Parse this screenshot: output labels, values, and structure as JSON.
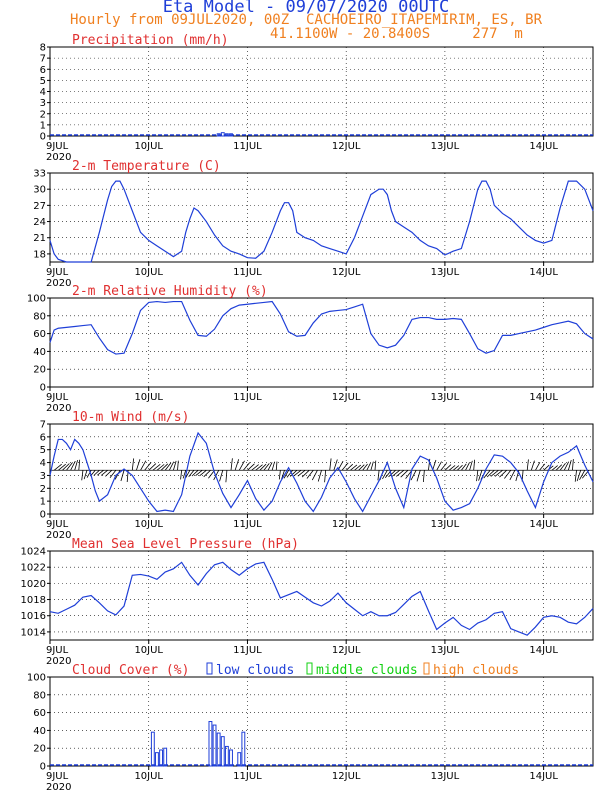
{
  "header": {
    "title": "Eta Model - 09/07/2020 00UTC",
    "subtitle1": "Hourly from 09JUL2020, 00Z  CACHOEIRO_ITAPEMIRIM, ES, BR",
    "subtitle2": "41.1100W - 20.8400S     277  m"
  },
  "colors": {
    "series": "#1f3fd8",
    "title_red": "#e03030",
    "header_orange": "#f08020",
    "legend_green": "#10d010",
    "wind_barb": "#000000"
  },
  "x_axis": {
    "tick_labels": [
      "9JUL",
      "10JUL",
      "11JUL",
      "12JUL",
      "13JUL",
      "14JUL"
    ],
    "tick_hours": [
      0,
      24,
      48,
      72,
      96,
      120
    ],
    "year_label": "2020",
    "range_hours": [
      0,
      132
    ]
  },
  "chart_data": [
    {
      "id": "precip",
      "type": "bar",
      "title": "Precipitation (mm/h)",
      "ylim": [
        0,
        8
      ],
      "yticks": [
        0,
        1,
        2,
        3,
        4,
        5,
        6,
        7,
        8
      ],
      "grid": true,
      "x": [
        41,
        42,
        43,
        44
      ],
      "values": [
        0.2,
        0.3,
        0.2,
        0.2
      ]
    },
    {
      "id": "temp",
      "type": "line",
      "title": "2-m Temperature (C)",
      "ylim": [
        16.5,
        33
      ],
      "yticks": [
        18,
        21,
        24,
        27,
        30,
        33
      ],
      "grid": true,
      "x": [
        0,
        1,
        2,
        4,
        6,
        8,
        10,
        12,
        14,
        15,
        16,
        17,
        18,
        20,
        22,
        24,
        26,
        28,
        30,
        32,
        33,
        34,
        35,
        36,
        38,
        40,
        42,
        44,
        46,
        48,
        50,
        52,
        54,
        56,
        57,
        58,
        59,
        60,
        62,
        64,
        66,
        68,
        70,
        72,
        74,
        76,
        78,
        80,
        81,
        82,
        83,
        84,
        86,
        88,
        90,
        92,
        94,
        96,
        98,
        100,
        102,
        104,
        105,
        106,
        107,
        108,
        110,
        112,
        114,
        116,
        118,
        120,
        122,
        124,
        126,
        128,
        130,
        132
      ],
      "values": [
        20.5,
        18,
        17,
        16.5,
        16,
        16,
        16.2,
        22,
        28,
        30.5,
        31.5,
        31.5,
        30,
        26,
        22,
        20.5,
        19.5,
        18.5,
        17.5,
        18.5,
        22,
        24.5,
        26.5,
        26,
        24,
        21.5,
        19.5,
        18.5,
        18,
        17.3,
        17.2,
        18.5,
        22,
        26,
        27.5,
        27.5,
        26,
        22,
        21,
        20.5,
        19.5,
        19,
        18.5,
        18,
        21,
        25,
        29,
        30,
        30,
        29,
        26,
        24,
        23,
        22,
        20.5,
        19.5,
        19,
        17.8,
        18.5,
        19,
        24,
        30,
        31.5,
        31.5,
        30,
        27,
        25.5,
        24.5,
        23,
        21.5,
        20.5,
        20,
        20.5,
        26.5,
        31.5,
        31.5,
        30,
        26
      ]
    },
    {
      "id": "rh",
      "type": "line",
      "title": "2-m Relative Humidity (%)",
      "ylim": [
        0,
        100
      ],
      "yticks": [
        0,
        20,
        40,
        60,
        80,
        100
      ],
      "grid": true,
      "x": [
        0,
        1,
        2,
        4,
        6,
        8,
        10,
        12,
        14,
        16,
        18,
        20,
        22,
        24,
        26,
        28,
        30,
        32,
        34,
        36,
        38,
        40,
        42,
        44,
        46,
        48,
        50,
        52,
        54,
        56,
        58,
        60,
        62,
        64,
        66,
        68,
        70,
        72,
        74,
        76,
        78,
        80,
        82,
        84,
        86,
        88,
        90,
        92,
        94,
        96,
        98,
        100,
        102,
        104,
        106,
        108,
        110,
        112,
        114,
        116,
        118,
        120,
        122,
        124,
        126,
        128,
        130,
        132
      ],
      "values": [
        50,
        64,
        66,
        67,
        68,
        69,
        70,
        55,
        42,
        37,
        38,
        60,
        86,
        95,
        96,
        95,
        96,
        96,
        75,
        58,
        57,
        65,
        80,
        88,
        92,
        93,
        94,
        95,
        96,
        82,
        62,
        57,
        58,
        72,
        82,
        85,
        86,
        87,
        90,
        93,
        60,
        47,
        44,
        47,
        58,
        76,
        78,
        78,
        76,
        76,
        77,
        76,
        60,
        43,
        38,
        41,
        58,
        58,
        60,
        62,
        64,
        67,
        70,
        72,
        74,
        71,
        60,
        54
      ]
    },
    {
      "id": "wind",
      "type": "line",
      "title": "10-m Wind (m/s)",
      "ylim": [
        0,
        7
      ],
      "yticks": [
        0,
        1,
        2,
        3,
        4,
        5,
        6,
        7
      ],
      "grid": true,
      "barb_level": 3.4,
      "x": [
        0,
        1,
        2,
        3,
        4,
        5,
        6,
        7,
        8,
        9,
        10,
        11,
        12,
        14,
        16,
        18,
        20,
        22,
        24,
        26,
        28,
        30,
        32,
        34,
        36,
        38,
        40,
        42,
        44,
        46,
        48,
        50,
        52,
        54,
        56,
        58,
        60,
        62,
        64,
        66,
        68,
        70,
        72,
        74,
        76,
        78,
        80,
        82,
        84,
        86,
        88,
        90,
        92,
        94,
        96,
        98,
        100,
        102,
        104,
        106,
        108,
        110,
        112,
        114,
        116,
        118,
        120,
        122,
        124,
        126,
        128,
        130,
        132
      ],
      "values": [
        3,
        4.5,
        5.8,
        5.8,
        5.5,
        5,
        5.8,
        5.5,
        5,
        4,
        3,
        1.8,
        1,
        1.5,
        3,
        3.5,
        3,
        2,
        1,
        0.2,
        0.3,
        0.2,
        1.5,
        4.5,
        6.3,
        5.5,
        3.2,
        1.6,
        0.5,
        1.5,
        2.6,
        1.2,
        0.3,
        1,
        2.5,
        3.6,
        2.4,
        1,
        0.2,
        1.3,
        2.8,
        3.6,
        2.5,
        1.2,
        0.2,
        1.4,
        2.6,
        4,
        2,
        0.5,
        3.5,
        4.5,
        4.2,
        2.8,
        1,
        0.3,
        0.5,
        0.8,
        2,
        3.5,
        4.6,
        4.5,
        4,
        3.2,
        1.8,
        0.5,
        2.5,
        4,
        4.5,
        4.8,
        5.3,
        3.8,
        2.5
      ]
    },
    {
      "id": "mslp",
      "type": "line",
      "title": "Mean Sea Level Pressure (hPa)",
      "ylim": [
        1013,
        1024
      ],
      "yticks": [
        1014,
        1016,
        1018,
        1020,
        1022,
        1024
      ],
      "grid": true,
      "x": [
        0,
        2,
        4,
        6,
        8,
        10,
        12,
        14,
        16,
        18,
        20,
        22,
        24,
        26,
        28,
        30,
        32,
        34,
        36,
        38,
        40,
        42,
        44,
        46,
        48,
        50,
        52,
        54,
        56,
        58,
        60,
        62,
        64,
        66,
        68,
        70,
        72,
        74,
        76,
        78,
        80,
        82,
        84,
        86,
        88,
        90,
        92,
        94,
        96,
        98,
        100,
        102,
        104,
        106,
        108,
        110,
        112,
        114,
        116,
        118,
        120,
        122,
        124,
        126,
        128,
        130,
        132
      ],
      "values": [
        1016.5,
        1016.3,
        1016.8,
        1017.3,
        1018.3,
        1018.5,
        1017.6,
        1016.6,
        1016.1,
        1017.2,
        1021,
        1021.1,
        1020.9,
        1020.5,
        1021.4,
        1021.8,
        1022.6,
        1021,
        1019.8,
        1021.2,
        1022.3,
        1022.6,
        1021.7,
        1021,
        1021.8,
        1022.4,
        1022.6,
        1020.5,
        1018.2,
        1018.6,
        1019,
        1018.3,
        1017.6,
        1017.2,
        1017.8,
        1018.8,
        1017.6,
        1016.8,
        1016,
        1016.5,
        1016,
        1016,
        1016.4,
        1017.4,
        1018.4,
        1019,
        1016.6,
        1014.3,
        1015.1,
        1015.8,
        1014.8,
        1014.3,
        1015.1,
        1015.5,
        1016.3,
        1016.5,
        1014.4,
        1014,
        1013.6,
        1014.6,
        1015.8,
        1016,
        1015.8,
        1015.2,
        1015,
        1015.8,
        1016.9
      ]
    },
    {
      "id": "cloud",
      "type": "bar",
      "title": "Cloud Cover (%)",
      "ylim": [
        0,
        100
      ],
      "yticks": [
        0,
        20,
        40,
        60,
        80,
        100
      ],
      "grid": true,
      "legend": [
        "low clouds",
        "middle clouds",
        "high clouds"
      ],
      "x": [
        25,
        26,
        27,
        28,
        39,
        40,
        41,
        42,
        43,
        44,
        46,
        47
      ],
      "values": [
        38,
        15,
        18,
        20,
        50,
        46,
        37,
        33,
        22,
        18,
        15,
        38
      ]
    }
  ]
}
